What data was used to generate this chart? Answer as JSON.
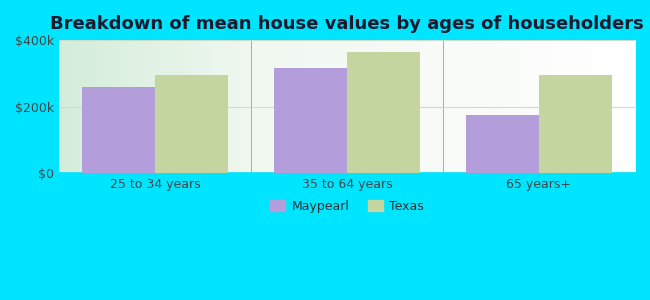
{
  "title": "Breakdown of mean house values by ages of householders",
  "categories": [
    "25 to 34 years",
    "35 to 64 years",
    "65 years+"
  ],
  "maypearl_values": [
    258000,
    315000,
    175000
  ],
  "texas_values": [
    295000,
    365000,
    295000
  ],
  "maypearl_color": "#b39ddb",
  "texas_color": "#c5d5a0",
  "background_color": "#00e5ff",
  "ylim": [
    0,
    400000
  ],
  "yticks": [
    0,
    200000,
    400000
  ],
  "ytick_labels": [
    "$0",
    "$200k",
    "$400k"
  ],
  "bar_width": 0.38,
  "legend_labels": [
    "Maypearl",
    "Texas"
  ],
  "title_fontsize": 13,
  "tick_fontsize": 9,
  "legend_fontsize": 9,
  "grid_color": "#ccddcc",
  "separator_color": "#aaaaaa"
}
